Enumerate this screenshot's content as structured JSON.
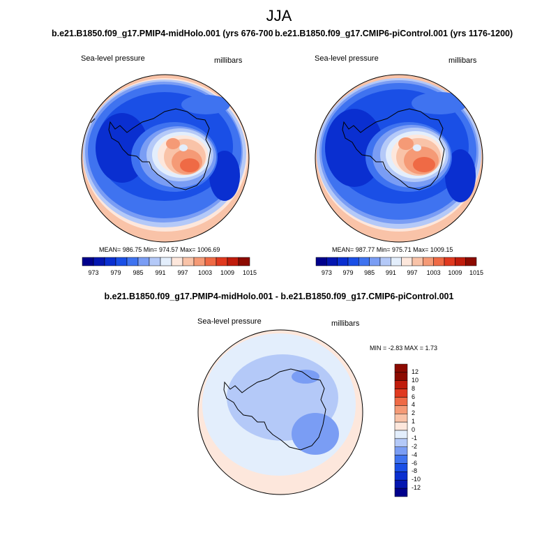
{
  "figure": {
    "season": "JJA"
  },
  "panels": [
    {
      "title": "b.e21.B1850.f09_g17.PMIP4-midHolo.001 (yrs 676-700)",
      "variable": "Sea-level pressure",
      "units": "millibars",
      "stats": "MEAN= 986.75  Min= 974.57  Max= 1006.69"
    },
    {
      "title": "b.e21.B1850.f09_g17.CMIP6-piControl.001 (yrs 1176-1200)",
      "variable": "Sea-level pressure",
      "units": "millibars",
      "stats": "MEAN= 987.77  Min= 975.71  Max= 1009.15"
    }
  ],
  "diff_panel": {
    "title": "b.e21.B1850.f09_g17.PMIP4-midHolo.001 - b.e21.B1850.f09_g17.CMIP6-piControl.001",
    "variable": "Sea-level pressure",
    "units": "millibars",
    "stats": "MIN =  -2.83 MAX =   1.73"
  },
  "colorbar_abs": {
    "labels": [
      "973",
      "979",
      "985",
      "991",
      "997",
      "1003",
      "1009",
      "1015"
    ],
    "colors": [
      "#00008c",
      "#0416b0",
      "#0a2fd0",
      "#1a4fe6",
      "#3f73f0",
      "#7a9df4",
      "#b4c9f8",
      "#e3eefc",
      "#fde7dc",
      "#f9c3a8",
      "#f59a76",
      "#ef6a45",
      "#e0391f",
      "#c01c0c",
      "#8c0a00"
    ]
  },
  "colorbar_diff": {
    "labels": [
      "12",
      "10",
      "8",
      "6",
      "4",
      "2",
      "1",
      "0",
      "-1",
      "-2",
      "-4",
      "-6",
      "-8",
      "-10",
      "-12"
    ],
    "colors": [
      "#8c0a00",
      "#c01c0c",
      "#e0391f",
      "#ef6a45",
      "#f59a76",
      "#f9c3a8",
      "#fde7dc",
      "#e3eefc",
      "#b4c9f8",
      "#7a9df4",
      "#3f73f0",
      "#1a4fe6",
      "#0a2fd0",
      "#0416b0",
      "#00008c"
    ]
  }
}
